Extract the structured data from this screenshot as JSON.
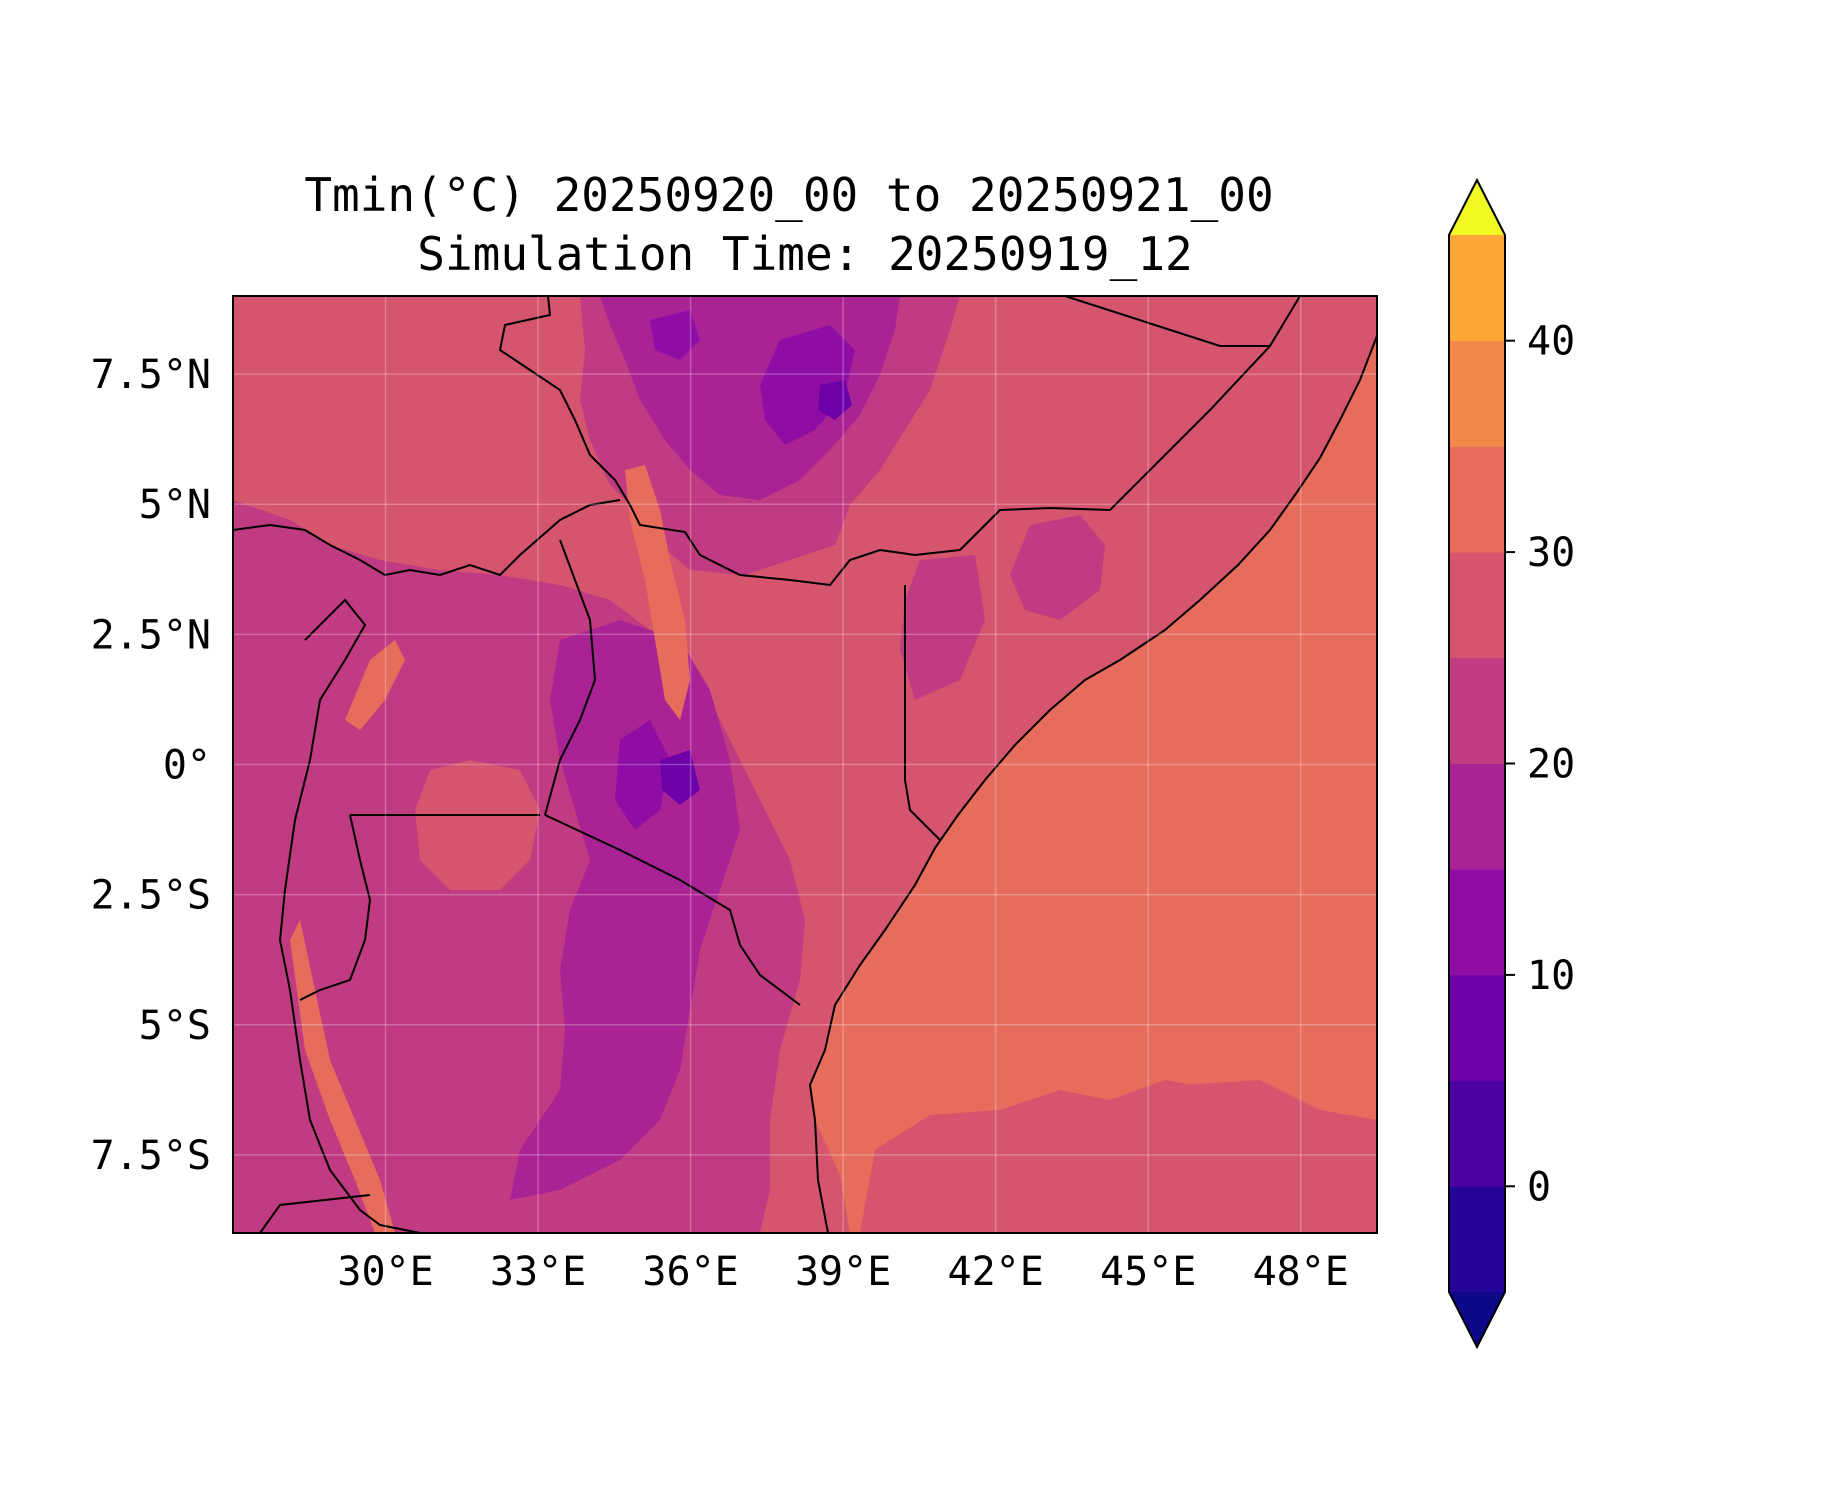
{
  "title": {
    "line1": "Tmin(°C) 20250920_00 to 20250921_00",
    "line2": "Simulation Time: 20250919_12"
  },
  "map": {
    "lon_range": [
      27.0,
      49.5
    ],
    "lat_range": [
      -9.0,
      9.0
    ],
    "x_ticks": [
      {
        "value": 30,
        "label": "30°E"
      },
      {
        "value": 33,
        "label": "33°E"
      },
      {
        "value": 36,
        "label": "36°E"
      },
      {
        "value": 39,
        "label": "39°E"
      },
      {
        "value": 42,
        "label": "42°E"
      },
      {
        "value": 45,
        "label": "45°E"
      },
      {
        "value": 48,
        "label": "48°E"
      }
    ],
    "y_ticks": [
      {
        "value": 7.5,
        "label": "7.5°N"
      },
      {
        "value": 5,
        "label": "5°N"
      },
      {
        "value": 2.5,
        "label": "2.5°N"
      },
      {
        "value": 0,
        "label": "0°"
      },
      {
        "value": -2.5,
        "label": "2.5°S"
      },
      {
        "value": -5,
        "label": "5°S"
      },
      {
        "value": -7.5,
        "label": "7.5°S"
      }
    ],
    "gridlines": true,
    "coastlines": true,
    "borders": true
  },
  "colorbar": {
    "placement": "right",
    "extend": "both",
    "range": [
      -5,
      45
    ],
    "step": 5,
    "ticks": [
      {
        "value": 0,
        "label": "0"
      },
      {
        "value": 10,
        "label": "10"
      },
      {
        "value": 20,
        "label": "20"
      },
      {
        "value": 30,
        "label": "30"
      },
      {
        "value": 40,
        "label": "40"
      }
    ],
    "colors": [
      "#0d0887",
      "#250499",
      "#4c02a1",
      "#6e00a8",
      "#8f0da4",
      "#a92395",
      "#c13b82",
      "#d5546e",
      "#e66c5c",
      "#f48849",
      "#fca636",
      "#fcc72c",
      "#f0f921"
    ],
    "under_color": "#0d0887",
    "over_color": "#f0f921"
  },
  "colors": {
    "c5_10": "#8f0da4",
    "c10_15": "#a92395",
    "c15_20": "#c13b82",
    "c20_25": "#d5546e",
    "c25_30": "#e66c5c",
    "c30_35": "#f48849"
  }
}
